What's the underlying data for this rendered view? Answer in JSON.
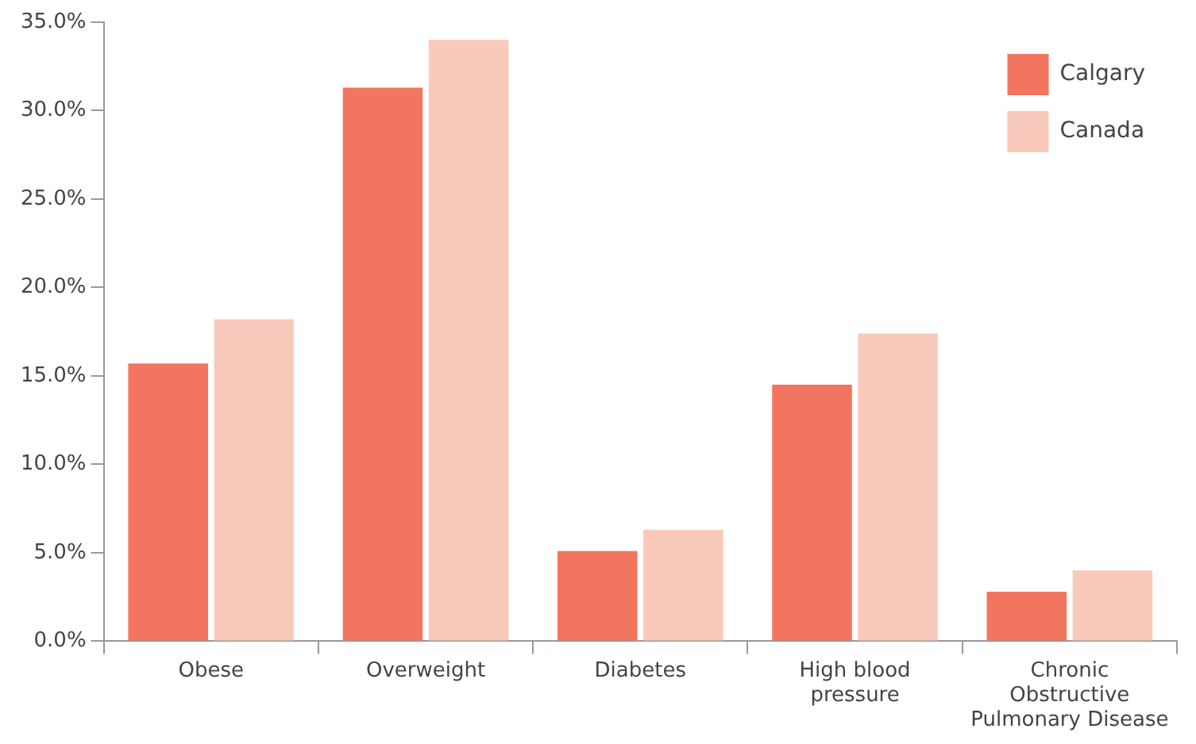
{
  "chart_data": {
    "type": "bar",
    "categories": [
      "Obese",
      "Overweight",
      "Diabetes",
      "High blood pressure",
      "Chronic Obstructive Pulmonary Disease"
    ],
    "series": [
      {
        "name": "Calgary",
        "color": "#f27560",
        "values": [
          15.7,
          31.3,
          5.1,
          14.5,
          2.8
        ]
      },
      {
        "name": "Canada",
        "color": "#f9cabb",
        "values": [
          18.2,
          34.0,
          6.3,
          17.4,
          4.0
        ]
      }
    ],
    "ylim": [
      0,
      35
    ],
    "yticks": [
      {
        "value": 0,
        "label": "0.0%"
      },
      {
        "value": 5,
        "label": "5.0%"
      },
      {
        "value": 10,
        "label": "10.0%"
      },
      {
        "value": 15,
        "label": "15.0%"
      },
      {
        "value": 20,
        "label": "20.0%"
      },
      {
        "value": 25,
        "label": "25.0%"
      },
      {
        "value": 30,
        "label": "30.0%"
      },
      {
        "value": 35,
        "label": "35.0%"
      }
    ],
    "grid": false,
    "legend": "top right"
  }
}
